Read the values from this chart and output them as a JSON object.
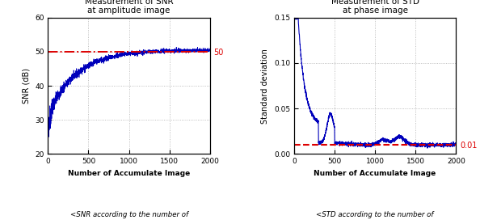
{
  "snr_title": "Measurement of SNR\nat amplitude image",
  "snr_xlabel": "Number of Accumulate Image",
  "snr_ylabel": "SNR (dB)",
  "snr_ylim": [
    20,
    60
  ],
  "snr_xlim": [
    0,
    2000
  ],
  "snr_yticks": [
    20,
    30,
    40,
    50,
    60
  ],
  "snr_reference": 50,
  "snr_reference_label": "50",
  "snr_caption": "<SNR according to the number of\naccumulate image>",
  "std_title": "Measurement of STD\nat phase image",
  "std_xlabel": "Number of Accumulate Image",
  "std_ylabel": "Standard deviation",
  "std_ylim": [
    0,
    0.15
  ],
  "std_xlim": [
    0,
    2000
  ],
  "std_yticks": [
    0,
    0.05,
    0.1,
    0.15
  ],
  "std_reference": 0.01,
  "std_reference_label": "0.01",
  "std_caption": "<STD according to the number of\naccumulate image>",
  "line_color": "#0000bb",
  "ref_color": "#dd0000",
  "bg_color": "#ffffff",
  "grid_color": "#999999"
}
